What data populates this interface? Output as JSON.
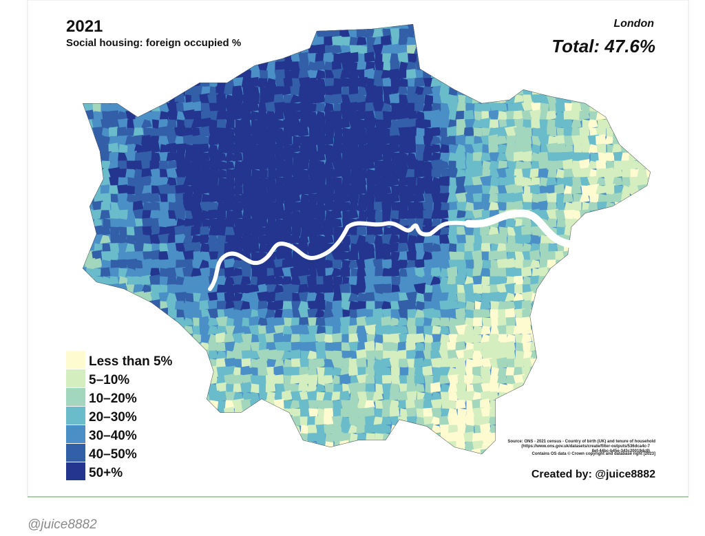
{
  "header": {
    "year": "2021",
    "subtitle": "Social housing: foreign occupied %",
    "region": "London",
    "total": "Total: 47.6%"
  },
  "legend": [
    {
      "label": "Less than 5%",
      "color": "#fdfbcf"
    },
    {
      "label": "5–10%",
      "color": "#d5eec0"
    },
    {
      "label": "10–20%",
      "color": "#a2d7bd"
    },
    {
      "label": "20–30%",
      "color": "#6bbccb"
    },
    {
      "label": "30–40%",
      "color": "#4a8fc6"
    },
    {
      "label": "40–50%",
      "color": "#335ea8"
    },
    {
      "label": "50+%",
      "color": "#24358f"
    }
  ],
  "footer": {
    "source": [
      "Source: ONS - 2021 census - Country of birth (UK) and tenure of household",
      "(https://www.ons.gov.uk/datasets/create/filter-outputs/536dca4c-7",
      "8ef-44bc-b45e-343c20019dc9)"
    ],
    "os_data": "Contains OS data © Crown copyright and database right [2023]",
    "credit": "Created by: @juice8882"
  },
  "caption": "@juice8882"
}
